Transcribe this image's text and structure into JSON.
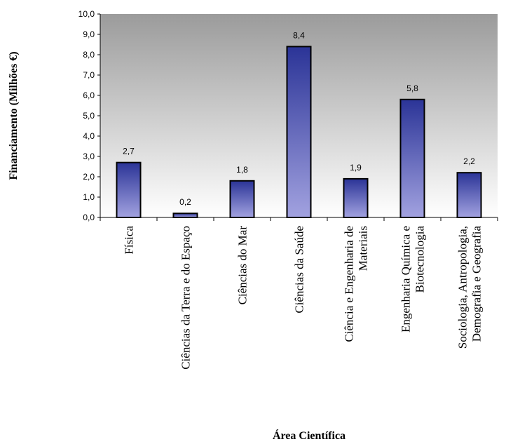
{
  "chart_data": {
    "type": "bar",
    "xlabel": "Área Científica",
    "ylabel": "Financiamento (Milhões €)",
    "ylim": [
      0,
      10
    ],
    "yticks": [
      "0,0",
      "1,0",
      "2,0",
      "3,0",
      "4,0",
      "5,0",
      "6,0",
      "7,0",
      "8,0",
      "9,0",
      "10,0"
    ],
    "grid": false,
    "legend": "none",
    "categories": [
      [
        "Física"
      ],
      [
        "Ciências da Terra e do Espaço"
      ],
      [
        "Ciências do Mar"
      ],
      [
        "Ciências da Saúde"
      ],
      [
        "Ciência e Engenharia de",
        "Materiais"
      ],
      [
        "Engenharia Química e",
        "Biotecnologia"
      ],
      [
        "Sociologia, Antropologia,",
        "Demografia e Geografia"
      ]
    ],
    "values": [
      2.7,
      0.2,
      1.8,
      8.4,
      1.9,
      5.8,
      2.2
    ],
    "data_labels": [
      "2,7",
      "0,2",
      "1,8",
      "8,4",
      "1,9",
      "5,8",
      "2,2"
    ],
    "colors": {
      "plot_bg_top": "#9b9b9b",
      "plot_bg_bottom": "#ffffff",
      "bar_top": "#2b3497",
      "bar_bottom": "#a2a2e0",
      "bar_edge": "#000000"
    }
  }
}
